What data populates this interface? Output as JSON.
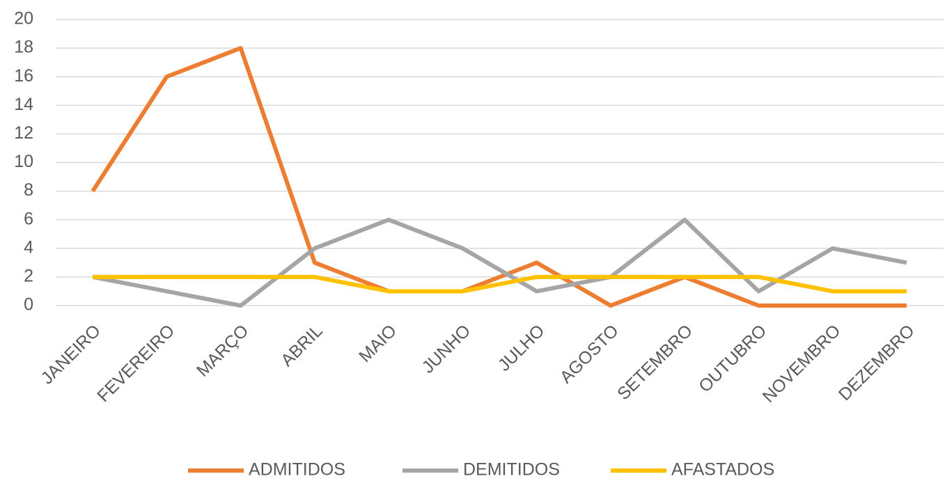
{
  "chart_data": {
    "type": "line",
    "categories": [
      "JANEIRO",
      "FEVEREIRO",
      "MARÇO",
      "ABRIL",
      "MAIO",
      "JUNHO",
      "JULHO",
      "AGOSTO",
      "SETEMBRO",
      "OUTUBRO",
      "NOVEMBRO",
      "DEZEMBRO"
    ],
    "series": [
      {
        "name": "ADMITIDOS",
        "color": "#ed7d31",
        "values": [
          8,
          16,
          18,
          3,
          1,
          1,
          3,
          0,
          2,
          0,
          0,
          0
        ]
      },
      {
        "name": "DEMITIDOS",
        "color": "#a5a5a5",
        "values": [
          2,
          1,
          0,
          4,
          6,
          4,
          1,
          2,
          6,
          1,
          4,
          3
        ]
      },
      {
        "name": "AFASTADOS",
        "color": "#ffc000",
        "values": [
          2,
          2,
          2,
          2,
          1,
          1,
          2,
          2,
          2,
          2,
          1,
          1
        ]
      }
    ],
    "ylim": [
      0,
      20
    ],
    "yticks": [
      0,
      2,
      4,
      6,
      8,
      10,
      12,
      14,
      16,
      18,
      20
    ],
    "grid": true,
    "legend": "bottom"
  }
}
